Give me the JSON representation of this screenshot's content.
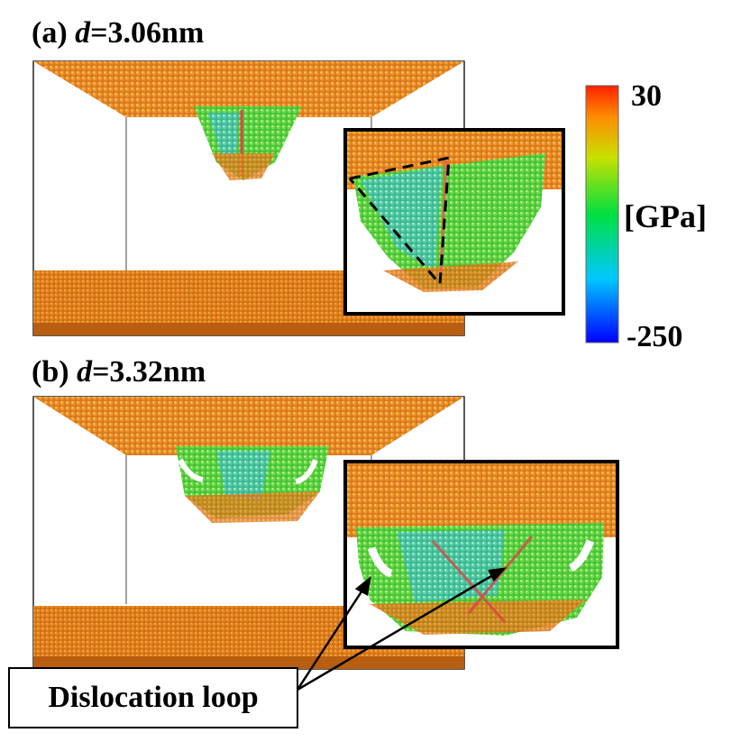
{
  "panel_a": {
    "tag": "(a)",
    "var": "d",
    "eq": "=3.06nm"
  },
  "panel_b": {
    "tag": "(b)",
    "var": "d",
    "eq": "=3.32nm"
  },
  "colorbar": {
    "max": "30",
    "min": "-250",
    "unit": "[GPa]",
    "colors": [
      "#0000ff",
      "#00c8ff",
      "#00e040",
      "#c8e000",
      "#ff8c00",
      "#ff2000"
    ]
  },
  "annotation": {
    "text": "Dislocation loop"
  }
}
